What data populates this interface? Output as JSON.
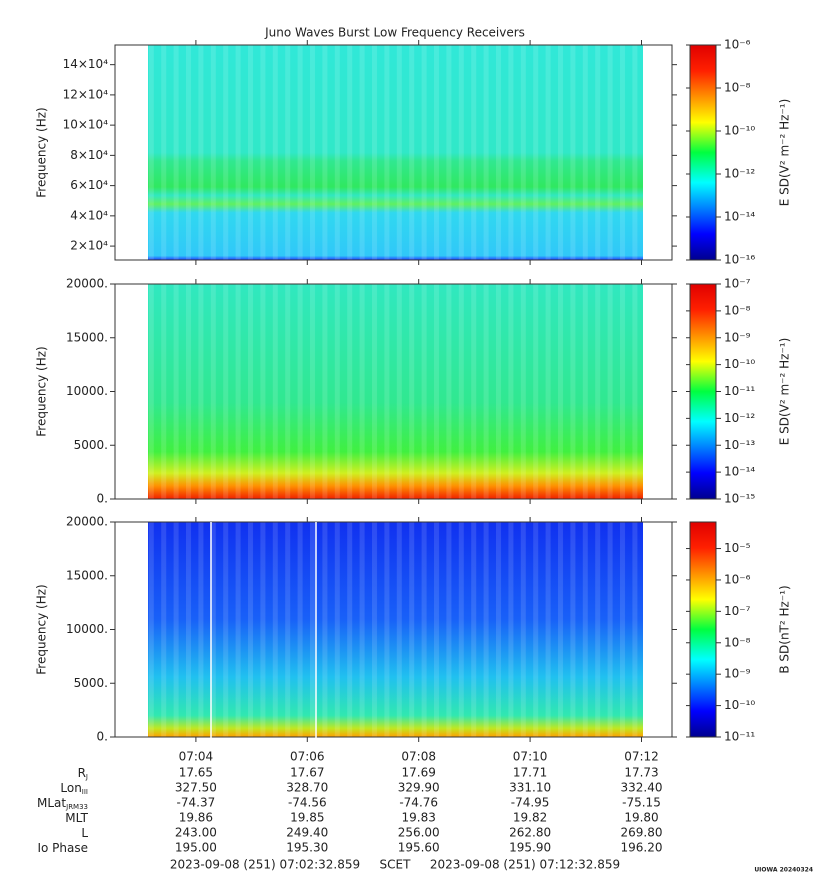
{
  "title": "Juno Waves Burst Low Frequency Receivers",
  "time_axis": {
    "label": "SCET",
    "xlim": [
      "2023-09-08 (251) 07:02:32.859",
      "2023-09-08 (251) 07:12:32.859"
    ],
    "xticks": [
      "07:04",
      "07:06",
      "07:08",
      "07:10",
      "07:12"
    ]
  },
  "ephemeris": [
    {
      "label": "R",
      "sub": "J",
      "values": [
        "17.65",
        "17.67",
        "17.69",
        "17.71",
        "17.73"
      ]
    },
    {
      "label": "Lon",
      "sub": "III",
      "values": [
        "327.50",
        "328.70",
        "329.90",
        "331.10",
        "332.40"
      ]
    },
    {
      "label": "MLat",
      "sub": "JRM33",
      "values": [
        "-74.37",
        "-74.56",
        "-74.76",
        "-74.95",
        "-75.15"
      ]
    },
    {
      "label": "MLT",
      "values": [
        "19.86",
        "19.85",
        "19.83",
        "19.82",
        "19.80"
      ]
    },
    {
      "label": "L",
      "values": [
        "243.00",
        "249.40",
        "256.00",
        "262.80",
        "269.80"
      ]
    },
    {
      "label": "Io Phase",
      "values": [
        "195.00",
        "195.30",
        "195.60",
        "195.90",
        "196.20"
      ]
    }
  ],
  "footer": "UIOWA 20240324",
  "chart_data": [
    {
      "type": "spectrogram",
      "ylabel": "Frequency (Hz)",
      "ylim": [
        10800,
        153000
      ],
      "yticks": [
        {
          "value": 20000,
          "label": "2×10⁴"
        },
        {
          "value": 40000,
          "label": "4×10⁴"
        },
        {
          "value": 60000,
          "label": "6×10⁴"
        },
        {
          "value": 80000,
          "label": "8×10⁴"
        },
        {
          "value": 100000,
          "label": "10×10⁴"
        },
        {
          "value": 120000,
          "label": "12×10⁴"
        },
        {
          "value": 140000,
          "label": "14×10⁴"
        }
      ],
      "colorbar": {
        "label": "E SD(V² m⁻² Hz⁻¹)",
        "log": true,
        "zlim": [
          1e-16,
          1e-06
        ],
        "zticks": [
          {
            "value": 1e-06,
            "label": "10⁻⁶"
          },
          {
            "value": 1e-08,
            "label": "10⁻⁸"
          },
          {
            "value": 1e-10,
            "label": "10⁻¹⁰"
          },
          {
            "value": 1e-12,
            "label": "10⁻¹²"
          },
          {
            "value": 1e-14,
            "label": "10⁻¹⁴"
          },
          {
            "value": 1e-16,
            "label": "10⁻¹⁶"
          }
        ]
      }
    },
    {
      "type": "spectrogram",
      "ylabel": "Frequency (Hz)",
      "ylim": [
        0,
        20000
      ],
      "yticks": [
        {
          "value": 0,
          "label": "0."
        },
        {
          "value": 5000,
          "label": "5000."
        },
        {
          "value": 10000,
          "label": "10000."
        },
        {
          "value": 15000,
          "label": "15000."
        },
        {
          "value": 20000,
          "label": "20000."
        }
      ],
      "colorbar": {
        "label": "E SD(V² m⁻² Hz⁻¹)",
        "log": true,
        "zlim": [
          1e-15,
          1e-07
        ],
        "zticks": [
          {
            "value": 1e-07,
            "label": "10⁻⁷"
          },
          {
            "value": 1e-08,
            "label": "10⁻⁸"
          },
          {
            "value": 1e-09,
            "label": "10⁻⁹"
          },
          {
            "value": 1e-10,
            "label": "10⁻¹⁰"
          },
          {
            "value": 1e-11,
            "label": "10⁻¹¹"
          },
          {
            "value": 1e-12,
            "label": "10⁻¹²"
          },
          {
            "value": 1e-13,
            "label": "10⁻¹³"
          },
          {
            "value": 1e-14,
            "label": "10⁻¹⁴"
          },
          {
            "value": 1e-15,
            "label": "10⁻¹⁵"
          }
        ]
      }
    },
    {
      "type": "spectrogram",
      "ylabel": "Frequency (Hz)",
      "ylim": [
        0,
        20000
      ],
      "yticks": [
        {
          "value": 0,
          "label": "0."
        },
        {
          "value": 5000,
          "label": "5000."
        },
        {
          "value": 10000,
          "label": "10000."
        },
        {
          "value": 15000,
          "label": "15000."
        },
        {
          "value": 20000,
          "label": "20000."
        }
      ],
      "colorbar": {
        "label": "B SD(nT² Hz⁻¹)",
        "log": true,
        "zlim": [
          1e-11,
          7e-05
        ],
        "zticks": [
          {
            "value": 1e-05,
            "label": "10⁻⁵"
          },
          {
            "value": 1e-06,
            "label": "10⁻⁶"
          },
          {
            "value": 1e-07,
            "label": "10⁻⁷"
          },
          {
            "value": 1e-08,
            "label": "10⁻⁸"
          },
          {
            "value": 1e-09,
            "label": "10⁻⁹"
          },
          {
            "value": 1e-10,
            "label": "10⁻¹⁰"
          },
          {
            "value": 1e-11,
            "label": "10⁻¹¹"
          }
        ]
      }
    }
  ]
}
